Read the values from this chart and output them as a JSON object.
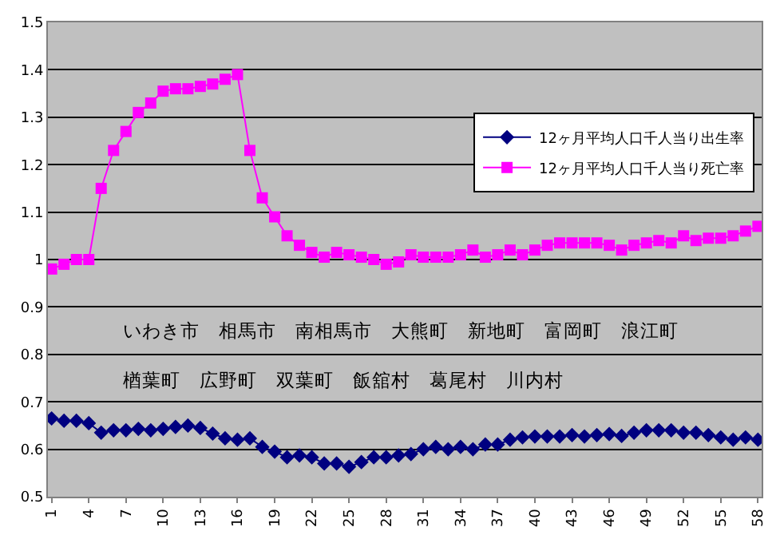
{
  "chart_data": {
    "type": "line",
    "categories": [
      "1",
      null,
      null,
      "4",
      null,
      null,
      "7",
      null,
      null,
      "10",
      null,
      null,
      "13",
      null,
      null,
      "16",
      null,
      null,
      "19",
      null,
      null,
      "22",
      null,
      null,
      "25",
      null,
      null,
      "28",
      null,
      null,
      "31",
      null,
      null,
      "34",
      null,
      null,
      "37",
      null,
      null,
      "40",
      null,
      null,
      "43",
      null,
      null,
      "46",
      null,
      null,
      "49",
      null,
      null,
      "52",
      null,
      null,
      "55",
      null,
      null,
      "58"
    ],
    "series": [
      {
        "name": "12ヶ月平均人口千人当り出生率",
        "color": "#000080",
        "marker": "diamond",
        "values": [
          0.665,
          0.66,
          0.66,
          0.655,
          0.635,
          0.64,
          0.64,
          0.643,
          0.64,
          0.643,
          0.647,
          0.65,
          0.645,
          0.633,
          0.623,
          0.62,
          0.623,
          0.605,
          0.595,
          0.583,
          0.587,
          0.583,
          0.57,
          0.57,
          0.563,
          0.573,
          0.583,
          0.583,
          0.587,
          0.59,
          0.6,
          0.605,
          0.6,
          0.605,
          0.6,
          0.61,
          0.61,
          0.62,
          0.625,
          0.627,
          0.627,
          0.627,
          0.63,
          0.627,
          0.63,
          0.632,
          0.628,
          0.635,
          0.64,
          0.64,
          0.64,
          0.635,
          0.635,
          0.63,
          0.625,
          0.62,
          0.625,
          0.62
        ]
      },
      {
        "name": "12ヶ月平均人口千人当り死亡率",
        "color": "#ff00ff",
        "marker": "square",
        "values": [
          0.98,
          0.99,
          1.0,
          1.0,
          1.15,
          1.23,
          1.27,
          1.31,
          1.33,
          1.355,
          1.36,
          1.36,
          1.365,
          1.37,
          1.38,
          1.39,
          1.23,
          1.13,
          1.09,
          1.05,
          1.03,
          1.015,
          1.005,
          1.015,
          1.01,
          1.005,
          1.0,
          0.99,
          0.995,
          1.01,
          1.005,
          1.005,
          1.005,
          1.01,
          1.02,
          1.005,
          1.01,
          1.02,
          1.01,
          1.02,
          1.03,
          1.035,
          1.035,
          1.035,
          1.035,
          1.03,
          1.02,
          1.03,
          1.035,
          1.04,
          1.035,
          1.05,
          1.04,
          1.045,
          1.045,
          1.05,
          1.06,
          1.07
        ]
      }
    ],
    "ylim": [
      0.5,
      1.5
    ],
    "yticks": [
      0.5,
      0.6,
      0.7,
      0.8,
      0.9,
      1,
      1.1,
      1.2,
      1.3,
      1.4,
      1.5
    ],
    "grid": "y",
    "legend": "right",
    "annotations": [
      "いわき市　相馬市　南相馬市　大熊町　新地町　富岡町　浪江町",
      "楢葉町　広野町　双葉町　飯舘村　葛尾村　川内村"
    ]
  }
}
